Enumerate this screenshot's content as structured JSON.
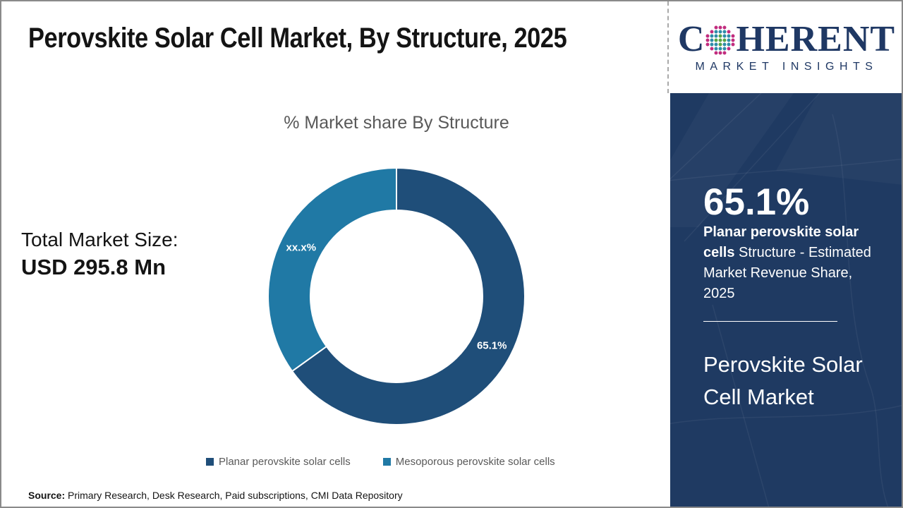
{
  "header": {
    "title": "Perovskite Solar Cell Market, By Structure, 2025"
  },
  "logo": {
    "word_start": "C",
    "word_end": "HERENT",
    "subtitle": "MARKET INSIGHTS",
    "brand_navy": "#1F3864",
    "globe_colors": {
      "inner": "#55A546",
      "mid": "#2E8CA8",
      "outer": "#C12C7E"
    }
  },
  "left_panel": {
    "total_label": "Total Market Size:",
    "total_value": "USD 295.8 Mn"
  },
  "chart_data": {
    "type": "pie",
    "subtype": "donut",
    "title": "% Market share By Structure",
    "series": [
      {
        "name": "Planar perovskite solar cells",
        "value": 65.1,
        "label": "65.1%",
        "color": "#1F4E79"
      },
      {
        "name": "Mesoporous perovskite solar cells",
        "value": 34.9,
        "label": "xx.x%",
        "color": "#2079A5"
      }
    ],
    "start_angle_deg": 0,
    "direction": "clockwise",
    "inner_radius_ratio": 0.67,
    "legend_position": "bottom",
    "slice_label_color": "#FFFFFF"
  },
  "sidebar": {
    "bg_color": "#1F3A62",
    "stat_value": "65.1%",
    "stat_bold": "Planar perovskite solar cells",
    "stat_rest": " Structure - Estimated Market Revenue Share, 2025",
    "market_name": "Perovskite Solar Cell Market"
  },
  "footer": {
    "source_label": "Source:",
    "source_text": " Primary Research, Desk Research, Paid subscriptions, CMI Data Repository"
  }
}
